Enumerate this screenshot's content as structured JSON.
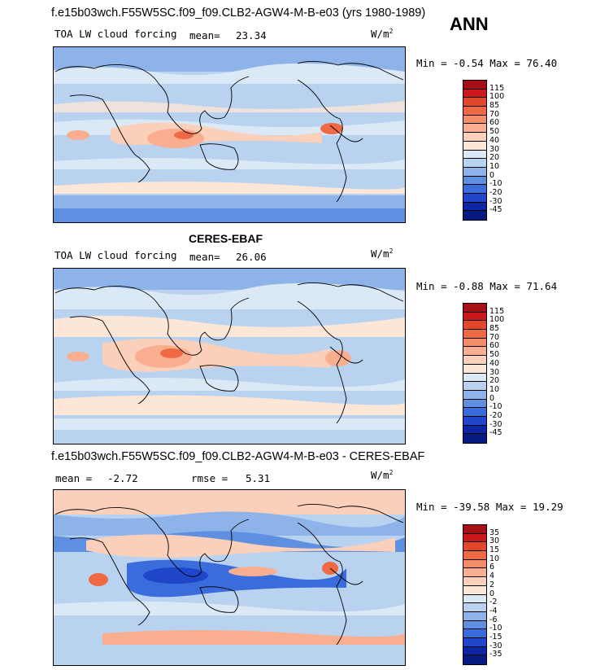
{
  "annotation": "ANN",
  "units": "W/m",
  "units_sup": "2",
  "panels": [
    {
      "title": "f.e15b03wch.F55W5SC.f09_f09.CLB2-AGW4-M-B-e03 (yrs 1980-1989)",
      "variable": "TOA LW cloud forcing",
      "mean_label": "mean=",
      "mean_value": "23.34",
      "minmax": "Min =  -0.54 Max =  76.40",
      "levels": [
        "115",
        "100",
        "85",
        "70",
        "60",
        "50",
        "40",
        "30",
        "20",
        "10",
        "0",
        "-10",
        "-20",
        "-30",
        "-45"
      ],
      "colors": [
        "#a50f15",
        "#cb181d",
        "#e0482c",
        "#ef6a44",
        "#f58e68",
        "#f9ae8f",
        "#fbd0bb",
        "#fbe6d8",
        "#dbe8f6",
        "#b8d2f0",
        "#8db3e8",
        "#5f8fe0",
        "#3a6cdb",
        "#1f45c8",
        "#0b27a6",
        "#061a80"
      ]
    },
    {
      "title": "CERES-EBAF",
      "variable": "TOA LW cloud forcing",
      "mean_label": "mean=",
      "mean_value": "26.06",
      "minmax": "Min =  -0.88 Max =  71.64",
      "levels": [
        "115",
        "100",
        "85",
        "70",
        "60",
        "50",
        "40",
        "30",
        "20",
        "10",
        "0",
        "-10",
        "-20",
        "-30",
        "-45"
      ],
      "colors": [
        "#a50f15",
        "#cb181d",
        "#e0482c",
        "#ef6a44",
        "#f58e68",
        "#f9ae8f",
        "#fbd0bb",
        "#fbe6d8",
        "#dbe8f6",
        "#b8d2f0",
        "#8db3e8",
        "#5f8fe0",
        "#3a6cdb",
        "#1f45c8",
        "#0b27a6",
        "#061a80"
      ]
    },
    {
      "title": "f.e15b03wch.F55W5SC.f09_f09.CLB2-AGW4-M-B-e03 - CERES-EBAF",
      "mean_label": "mean =",
      "mean_value": "-2.72",
      "rmse_label": "rmse =",
      "rmse_value": "5.31",
      "minmax": "Min = -39.58 Max =  19.29",
      "levels": [
        "35",
        "30",
        "15",
        "10",
        "6",
        "4",
        "2",
        "0",
        "-2",
        "-4",
        "-6",
        "-10",
        "-15",
        "-30",
        "-35"
      ],
      "colors": [
        "#a50f15",
        "#cb181d",
        "#e0482c",
        "#ef6a44",
        "#f58e68",
        "#f9ae8f",
        "#fbd0bb",
        "#fbe6d8",
        "#dbe8f6",
        "#b8d2f0",
        "#8db3e8",
        "#5f8fe0",
        "#3a6cdb",
        "#1f45c8",
        "#0b27a6",
        "#061a80"
      ]
    }
  ]
}
